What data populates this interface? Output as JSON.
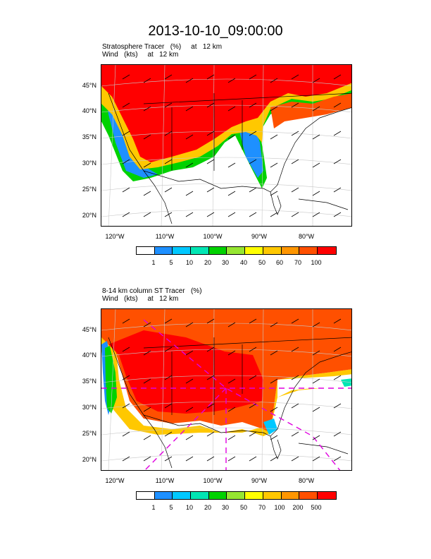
{
  "title": "2013-10-10_09:00:00",
  "panels": [
    {
      "left_title": "Stratosphere Tracer   (%)     at   12 km\nWind   (kts)     at   12 km",
      "lat_labels": [
        "45°N",
        "40°N",
        "35°N",
        "30°N",
        "25°N",
        "20°N"
      ],
      "lon_labels": [
        "120°W",
        "110°W",
        "100°W",
        "90°W",
        "80°W"
      ],
      "legend_labels": [
        "1",
        "5",
        "10",
        "20",
        "30",
        "40",
        "50",
        "60",
        "70",
        "100"
      ]
    },
    {
      "left_title": "8-14 km column ST Tracer   (%)\nWind   (kts)     at   12 km",
      "lat_labels": [
        "45°N",
        "40°N",
        "35°N",
        "30°N",
        "25°N",
        "20°N"
      ],
      "lon_labels": [
        "120°W",
        "110°W",
        "100°W",
        "90°W",
        "80°W"
      ],
      "legend_labels": [
        "1",
        "5",
        "10",
        "20",
        "30",
        "50",
        "70",
        "100",
        "200",
        "500"
      ]
    }
  ],
  "colorbar_colors": [
    "#ffffff",
    "#1e90ff",
    "#00c8ff",
    "#00e6b4",
    "#00d200",
    "#96e632",
    "#ffff00",
    "#ffc800",
    "#ff9600",
    "#ff5000",
    "#ff0000"
  ],
  "overlay_color": "#e000e0"
}
